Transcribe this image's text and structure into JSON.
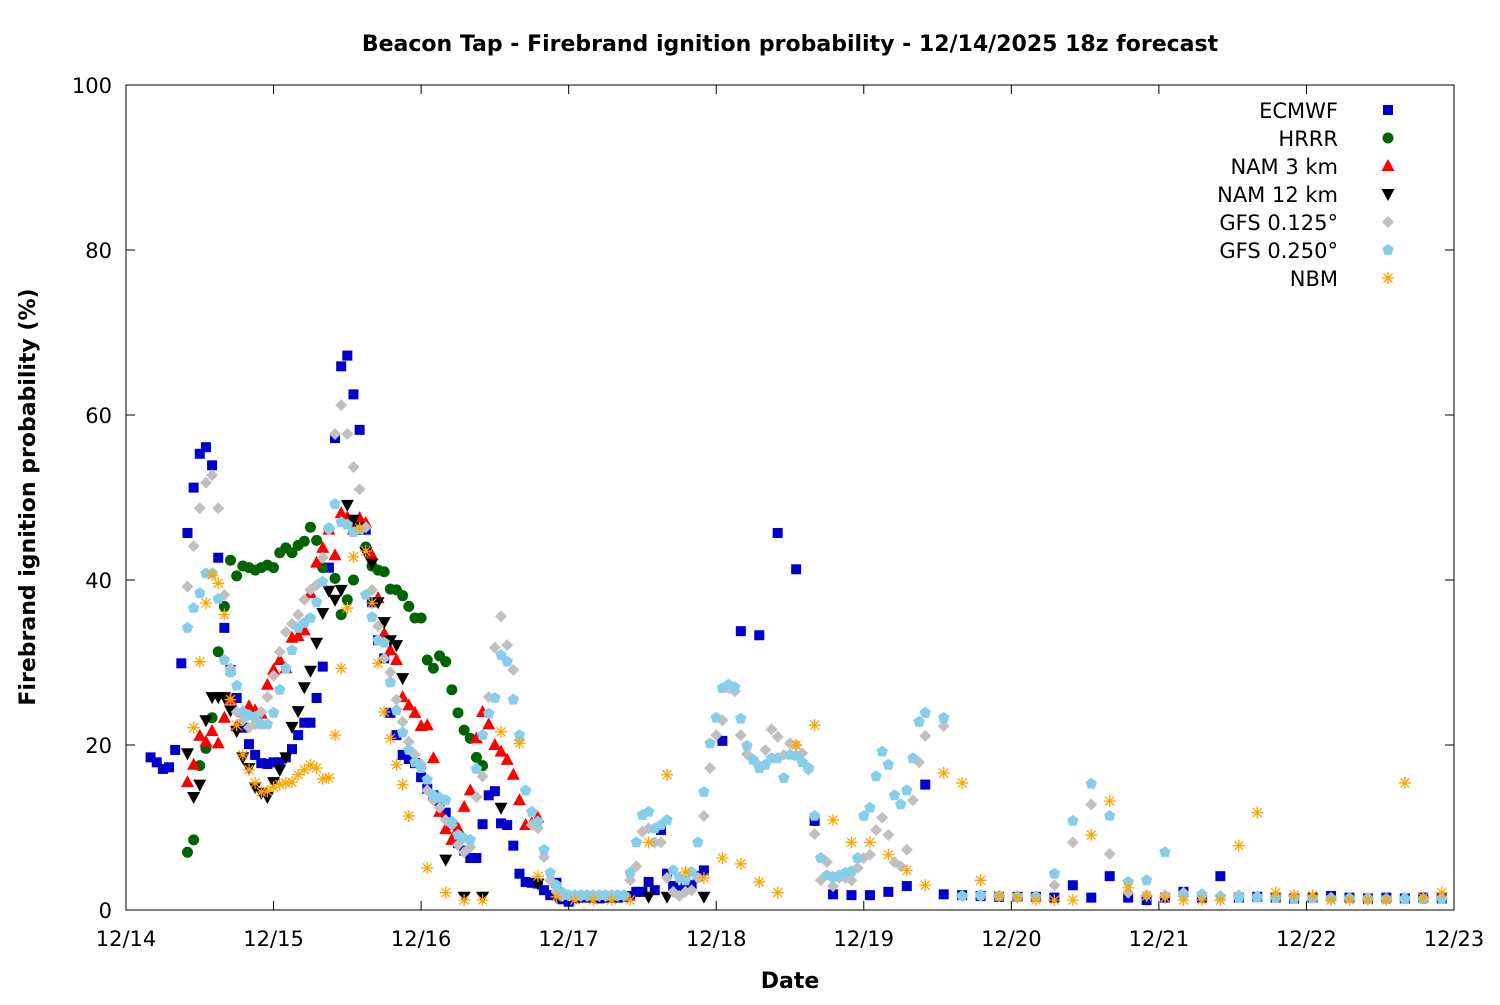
{
  "chart_data": {
    "type": "scatter",
    "title": "Beacon Tap - Firebrand ignition probability - 12/14/2025 18z forecast",
    "xlabel": "Date",
    "ylabel": "Firebrand ignition probability (%)",
    "x_units": "hours since 12/14 00z",
    "xlim": [
      0,
      216
    ],
    "ylim": [
      0,
      100
    ],
    "x_ticks": [
      {
        "value": 0,
        "label": "12/14"
      },
      {
        "value": 24,
        "label": "12/15"
      },
      {
        "value": 48,
        "label": "12/16"
      },
      {
        "value": 72,
        "label": "12/17"
      },
      {
        "value": 96,
        "label": "12/18"
      },
      {
        "value": 120,
        "label": "12/19"
      },
      {
        "value": 144,
        "label": "12/20"
      },
      {
        "value": 168,
        "label": "12/21"
      },
      {
        "value": 192,
        "label": "12/22"
      },
      {
        "value": 216,
        "label": "12/23"
      }
    ],
    "y_ticks": [
      {
        "value": 0,
        "label": "0"
      },
      {
        "value": 20,
        "label": "20"
      },
      {
        "value": 40,
        "label": "40"
      },
      {
        "value": 60,
        "label": "60"
      },
      {
        "value": 80,
        "label": "80"
      },
      {
        "value": 100,
        "label": "100"
      }
    ],
    "grid": false,
    "legend_position": "top-right",
    "series": [
      {
        "name": "ECMWF",
        "marker": "square",
        "color": "#0000cc",
        "segments": [
          {
            "start": 4,
            "step": 1,
            "values": [
              18.5,
              17.9,
              17.1,
              17.3,
              19.4,
              29.9,
              45.7,
              51.2,
              55.3,
              56.1,
              53.9,
              42.7,
              34.2,
              29.1,
              25.7,
              22.1,
              20.1,
              18.8,
              17.8,
              17.7,
              17.9,
              17.9,
              18.5,
              19.5,
              21.2,
              22.7,
              22.7,
              25.7,
              29.5,
              41.5,
              57.2,
              65.9,
              67.2,
              62.5,
              58.2,
              46.1,
              37.3,
              32.7,
              30.5,
              23.9,
              21.2,
              18.8,
              18.3,
              17.8,
              16.1,
              14.7,
              13.9,
              13.2,
              11.8,
              10.3,
              8.1,
              7.2,
              6.3,
              6.3,
              10.4,
              13.9,
              14.4,
              10.5,
              10.3,
              7.8,
              4.4,
              3.4,
              3.3,
              3.2,
              2.4,
              1.8,
              3.3,
              1.3,
              1.0,
              1.4,
              1.5,
              1.5,
              1.5,
              1.4,
              1.5,
              1.5,
              1.5,
              1.6,
              1.7,
              2.2,
              2.2,
              3.4,
              2.4,
              9.7,
              4.4,
              2.9,
              2.4,
              2.7,
              3.0,
              4.1,
              4.8
            ]
          },
          {
            "start": 97,
            "step": 3,
            "values": [
              20.5,
              33.8,
              33.3,
              45.7,
              41.3,
              10.8,
              1.9,
              1.8,
              1.8,
              2.2,
              2.9,
              15.2,
              1.9,
              1.8,
              1.7,
              1.6,
              1.6,
              1.6,
              1.5,
              3.0,
              1.5,
              4.1,
              1.5,
              1.2,
              1.5,
              2.2,
              1.5,
              4.1,
              1.5,
              1.6,
              1.5,
              1.4,
              1.5,
              1.7,
              1.5,
              1.4,
              1.5,
              1.4,
              1.5,
              1.4
            ]
          }
        ]
      },
      {
        "name": "HRRR",
        "marker": "circle",
        "color": "#006400",
        "segments": [
          {
            "start": 10,
            "step": 1,
            "values": [
              7.0,
              8.5,
              17.5,
              19.6,
              23.3,
              31.3,
              36.8,
              42.4,
              40.5,
              41.7,
              41.5,
              41.2,
              41.5,
              41.8,
              41.5,
              43.3,
              43.9,
              43.3,
              44.2,
              44.7,
              46.4,
              44.8,
              41.5,
              46.2,
              40.2,
              35.8,
              37.6,
              40.0,
              46.1,
              44.0,
              41.7,
              41.2,
              41.0,
              38.9,
              38.8,
              38.1,
              36.8,
              35.4,
              35.4,
              30.3,
              29.3,
              30.8,
              30.1,
              26.7,
              23.9,
              21.8,
              20.8,
              18.5,
              17.5
            ]
          }
        ]
      },
      {
        "name": "NAM 3 km",
        "marker": "triangle-up",
        "color": "#ff0000",
        "segments": [
          {
            "start": 10,
            "step": 1,
            "values": [
              15.5,
              17.6,
              21.1,
              20.4,
              21.7,
              20.2,
              23.3,
              25.5,
              22.3,
              24.0,
              24.7,
              24.2,
              23.8,
              27.3,
              29.1,
              30.3,
              29.3,
              33.0,
              33.2,
              33.9,
              38.4,
              42.1,
              43.9,
              46.1,
              43.0,
              48.1,
              47.6,
              46.1,
              47.5,
              46.9,
              43.0,
              37.8,
              33.5,
              31.5,
              30.3,
              25.8,
              24.8,
              23.9,
              22.3,
              22.4,
              18.4,
              11.9,
              9.8,
              8.5,
              9.9,
              12.5,
              14.5,
              20.8,
              24.0,
              22.5,
              20.0,
              19.2,
              18.2,
              16.4,
              13.3,
              10.3,
              10.5,
              11.2
            ]
          }
        ]
      },
      {
        "name": "NAM 12 km",
        "marker": "triangle-down",
        "color": "#000000",
        "segments": [
          {
            "start": 10,
            "step": 1,
            "values": [
              19.0,
              13.7,
              15.2,
              23.0,
              25.8,
              25.8,
              25.8,
              24.2,
              21.7,
              18.5,
              17.2,
              14.9,
              14.2,
              13.7,
              15.5,
              17.0,
              18.5,
              22.2,
              24.1,
              27.0,
              29.0,
              32.4,
              36.0,
              38.7,
              37.6,
              38.8,
              49.1,
              47.3,
              46.4,
              43.4,
              42.0,
              37.3,
              34.9,
              32.7,
              32.1,
              28.1
            ]
          },
          {
            "points": [
              [
                52,
                6.1
              ],
              [
                55,
                1.6
              ],
              [
                58,
                1.6
              ],
              [
                61,
                12.4
              ],
              [
                67,
                3.2
              ],
              [
                70,
                1.6
              ],
              [
                85,
                1.6
              ],
              [
                88,
                1.6
              ],
              [
                94,
                1.6
              ]
            ]
          }
        ]
      },
      {
        "name": "GFS 0.125°",
        "marker": "diamond",
        "color": "#c0c0c0",
        "segments": [
          {
            "start": 10,
            "step": 1,
            "values": [
              39.2,
              44.1,
              48.7,
              51.8,
              52.7,
              48.7,
              38.2,
              29.3,
              24.0,
              23.0,
              22.1,
              22.5,
              24.0,
              25.8,
              28.4,
              31.3,
              33.7,
              34.7,
              35.8,
              37.6,
              38.8,
              39.4,
              42.7,
              46.1,
              57.7,
              61.2,
              57.7,
              53.7,
              51.0,
              46.4,
              38.8,
              34.4,
              30.5,
              28.8,
              25.5,
              22.8,
              20.4,
              18.8,
              17.7,
              14.5,
              13.3,
              12.4,
              10.9,
              10.3,
              7.9,
              7.0,
              7.6,
              13.7,
              16.2,
              25.8,
              31.8,
              35.6,
              32.1,
              29.1,
              20.6,
              14.5,
              10.3,
              9.9,
              6.4,
              3.6,
              2.2,
              1.7,
              1.7,
              1.7,
              1.7,
              1.7,
              1.7,
              1.7,
              1.7,
              1.7,
              1.7,
              1.7
            ]
          },
          {
            "start": 82,
            "step": 1,
            "values": [
              3.6,
              5.3,
              9.5,
              9.9,
              8.2,
              8.2,
              3.9,
              2.2,
              1.7,
              2.2,
              2.4,
              3.9,
              11.4,
              17.2,
              21.2,
              23.0,
              26.9,
              26.5,
              21.2,
              18.9,
              18.2,
              17.5,
              19.4,
              21.9,
              21.0,
              18.8,
              20.2,
              20.0,
              19.0,
              17.0,
              9.2,
              3.6,
              5.8,
              2.9,
              3.9,
              3.9,
              3.6,
              5.1,
              6.3,
              6.7,
              9.7,
              11.2,
              9.1,
              5.8,
              5.3,
              7.3,
              13.3,
              17.9,
              21.1
            ]
          },
          {
            "start": 133,
            "step": 3,
            "values": [
              22.3,
              1.7,
              1.7,
              1.7,
              1.7,
              1.7,
              3.0,
              8.2,
              12.8,
              6.8,
              2.1,
              1.8,
              1.8,
              2.1,
              1.7,
              1.7,
              1.8,
              1.7,
              1.6,
              1.6,
              1.5,
              1.5,
              1.5,
              1.5,
              1.4,
              1.5,
              1.4,
              1.5
            ]
          }
        ]
      },
      {
        "name": "GFS 0.250°",
        "marker": "pentagon",
        "color": "#87ceeb",
        "segments": [
          {
            "start": 10,
            "step": 1,
            "values": [
              34.2,
              36.6,
              38.4,
              40.8,
              40.8,
              37.7,
              30.3,
              28.8,
              27.2,
              24.0,
              23.6,
              23.4,
              22.5,
              22.5,
              23.9,
              26.7,
              29.3,
              31.5,
              34.2,
              34.8,
              35.4,
              37.3,
              39.8,
              46.3,
              49.2,
              47.0,
              46.7,
              45.8,
              46.1,
              38.2,
              35.5,
              32.7,
              32.4,
              27.6,
              24.2,
              21.5,
              19.4,
              17.9,
              17.2,
              15.8,
              13.9,
              13.6,
              13.3,
              10.7,
              9.1,
              8.7,
              8.5,
              17.1,
              21.2,
              23.8,
              25.7,
              30.9,
              30.1,
              25.5,
              21.2,
              14.5,
              11.9,
              10.7,
              7.3,
              4.5,
              3.0,
              2.1,
              1.8,
              1.8,
              1.8,
              1.8,
              1.8,
              1.8,
              1.8,
              1.8,
              1.8,
              1.8
            ]
          },
          {
            "start": 82,
            "step": 1,
            "values": [
              4.5,
              8.2,
              11.5,
              11.9,
              9.9,
              10.3,
              10.9,
              4.8,
              3.9,
              3.6,
              4.6,
              8.2,
              14.3,
              20.2,
              23.3,
              26.9,
              27.3,
              27.0,
              23.2,
              19.9,
              18.2,
              17.2,
              17.6,
              18.4,
              18.4,
              16.0,
              18.8,
              18.7,
              17.9,
              17.2,
              11.4,
              6.3,
              4.2,
              4.0,
              4.2,
              4.5,
              4.7,
              6.3,
              11.4,
              12.4,
              16.2,
              19.2,
              17.6,
              13.9,
              12.8,
              14.5,
              18.4,
              22.8,
              23.9
            ]
          },
          {
            "start": 133,
            "step": 3,
            "values": [
              23.3,
              1.7,
              1.8,
              1.7,
              1.6,
              1.6,
              4.4,
              10.8,
              15.3,
              11.4,
              3.4,
              3.6,
              7.0,
              1.8,
              1.9,
              1.6,
              1.5,
              1.5,
              1.5,
              1.4,
              1.4,
              1.4,
              1.4,
              1.3,
              1.3,
              1.3,
              1.3,
              1.4
            ]
          }
        ]
      },
      {
        "name": "NBM",
        "marker": "asterisk",
        "color": "#ffa500",
        "segments": [
          {
            "start": 11,
            "step": 1,
            "values": [
              22.1,
              30.1,
              37.2,
              40.6,
              39.6,
              35.8,
              25.5,
              22.4,
              18.8,
              17.0,
              15.4,
              14.3,
              14.4,
              14.9,
              15.2,
              15.4,
              15.5,
              16.4,
              17.0,
              17.6,
              17.2,
              15.9,
              16.0,
              21.2,
              29.3,
              36.6,
              42.8,
              46.3,
              43.5,
              37.2,
              29.9,
              24.0,
              20.8,
              17.6,
              15.2,
              11.4
            ]
          },
          {
            "start": 49,
            "step": 3,
            "values": [
              5.1,
              2.1,
              1.2,
              1.2,
              21.6,
              20.2,
              4.1,
              1.6,
              1.2,
              1.2,
              1.2,
              1.2,
              8.2,
              16.4,
              4.6,
              3.9,
              6.3,
              5.6,
              3.4,
              2.1,
              20.0,
              22.4,
              10.9,
              8.2,
              8.2,
              6.7,
              4.8,
              3.0,
              16.6,
              15.4,
              3.6,
              1.7,
              1.5,
              1.2,
              1.2,
              1.2,
              9.1,
              13.2,
              2.7,
              1.7,
              1.5,
              1.2,
              1.2,
              1.2,
              7.8,
              11.8,
              2.1,
              1.8,
              1.8,
              1.2,
              1.2,
              1.2,
              1.2,
              15.4,
              1.5,
              2.1
            ]
          }
        ]
      }
    ]
  }
}
